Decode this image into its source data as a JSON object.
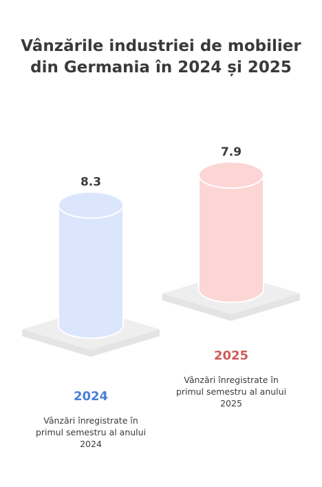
{
  "title": "Vânzările industriei de mobilier din Germania în 2024 și 2025",
  "colors": {
    "title": "#3a3a3a",
    "bar_2024_fill": "#dbe6fd",
    "bar_2025_fill": "#fcd5d5",
    "year_2024": "#4a7fd6",
    "year_2025": "#d05a5a",
    "base": "#eeeeee"
  },
  "chart_data": {
    "type": "bar",
    "categories": [
      "2024",
      "2025"
    ],
    "values": [
      8.3,
      7.9
    ],
    "value_labels": [
      "8.3",
      "7.9"
    ],
    "captions": [
      "Vânzări înregistrate în primul semestru al anului 2024",
      "Vânzări înregistrate în primul semestru al anului 2025"
    ],
    "title": "Vânzările industriei de mobilier din Germania în 2024 și 2025",
    "xlabel": "",
    "ylabel": ""
  }
}
